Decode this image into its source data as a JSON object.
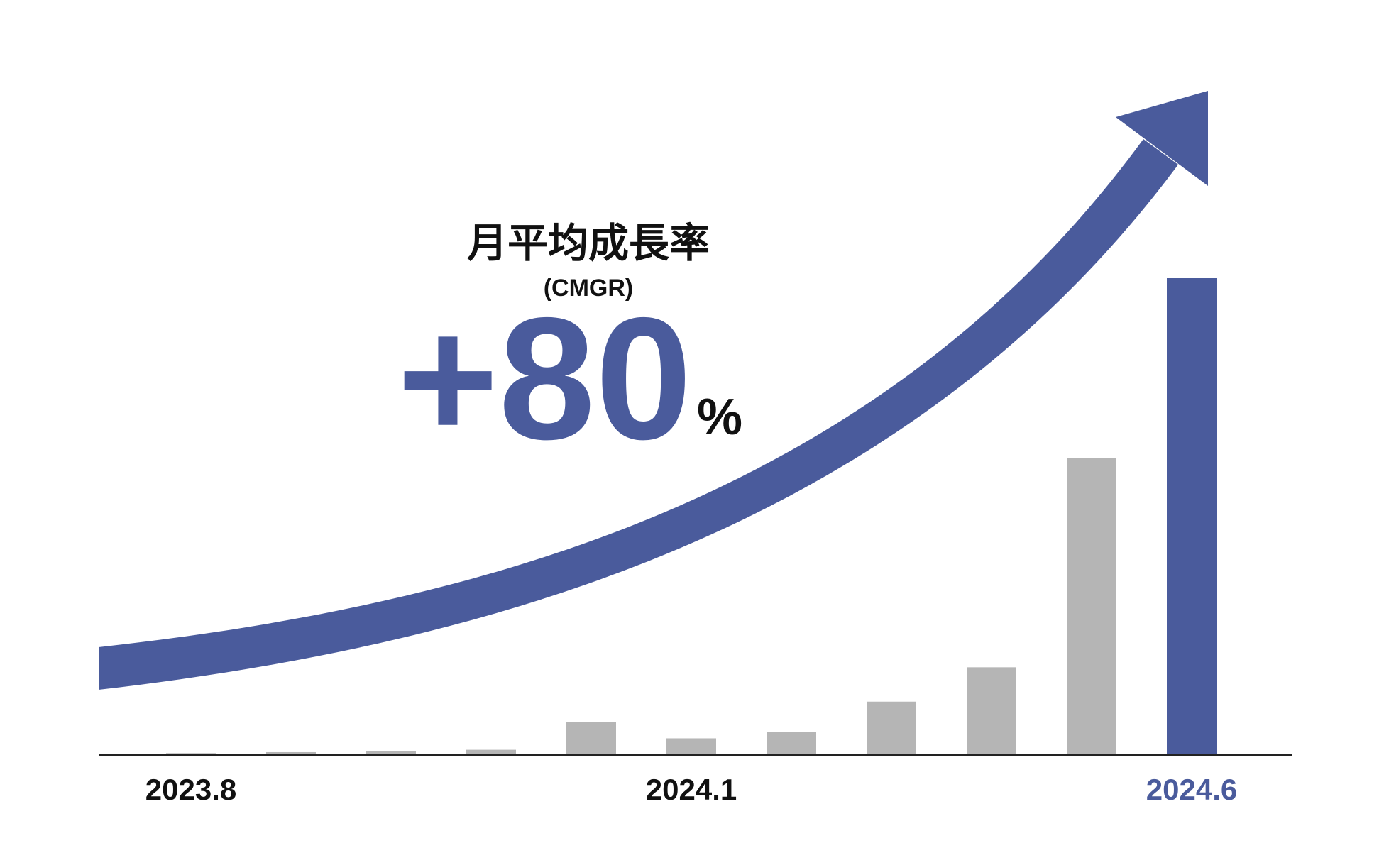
{
  "chart_data": {
    "type": "bar",
    "title": "月平均成長率",
    "subtitle": "(CMGR)",
    "annotation": "+80",
    "annotation_unit": "%",
    "categories": [
      "2023.8",
      null,
      null,
      null,
      null,
      "2024.1",
      null,
      null,
      null,
      null,
      "2024.6"
    ],
    "values": [
      0.4,
      0.6,
      0.8,
      1.1,
      6.9,
      3.5,
      4.8,
      11.2,
      18.4,
      62.3,
      100
    ],
    "colors": [
      "#b5b5b5",
      "#b5b5b5",
      "#b5b5b5",
      "#b5b5b5",
      "#b5b5b5",
      "#b5b5b5",
      "#b5b5b5",
      "#b5b5b5",
      "#b5b5b5",
      "#b5b5b5",
      "#4a5b9c"
    ],
    "accent_color": "#4a5b9c",
    "ylim": [
      0,
      100
    ]
  }
}
